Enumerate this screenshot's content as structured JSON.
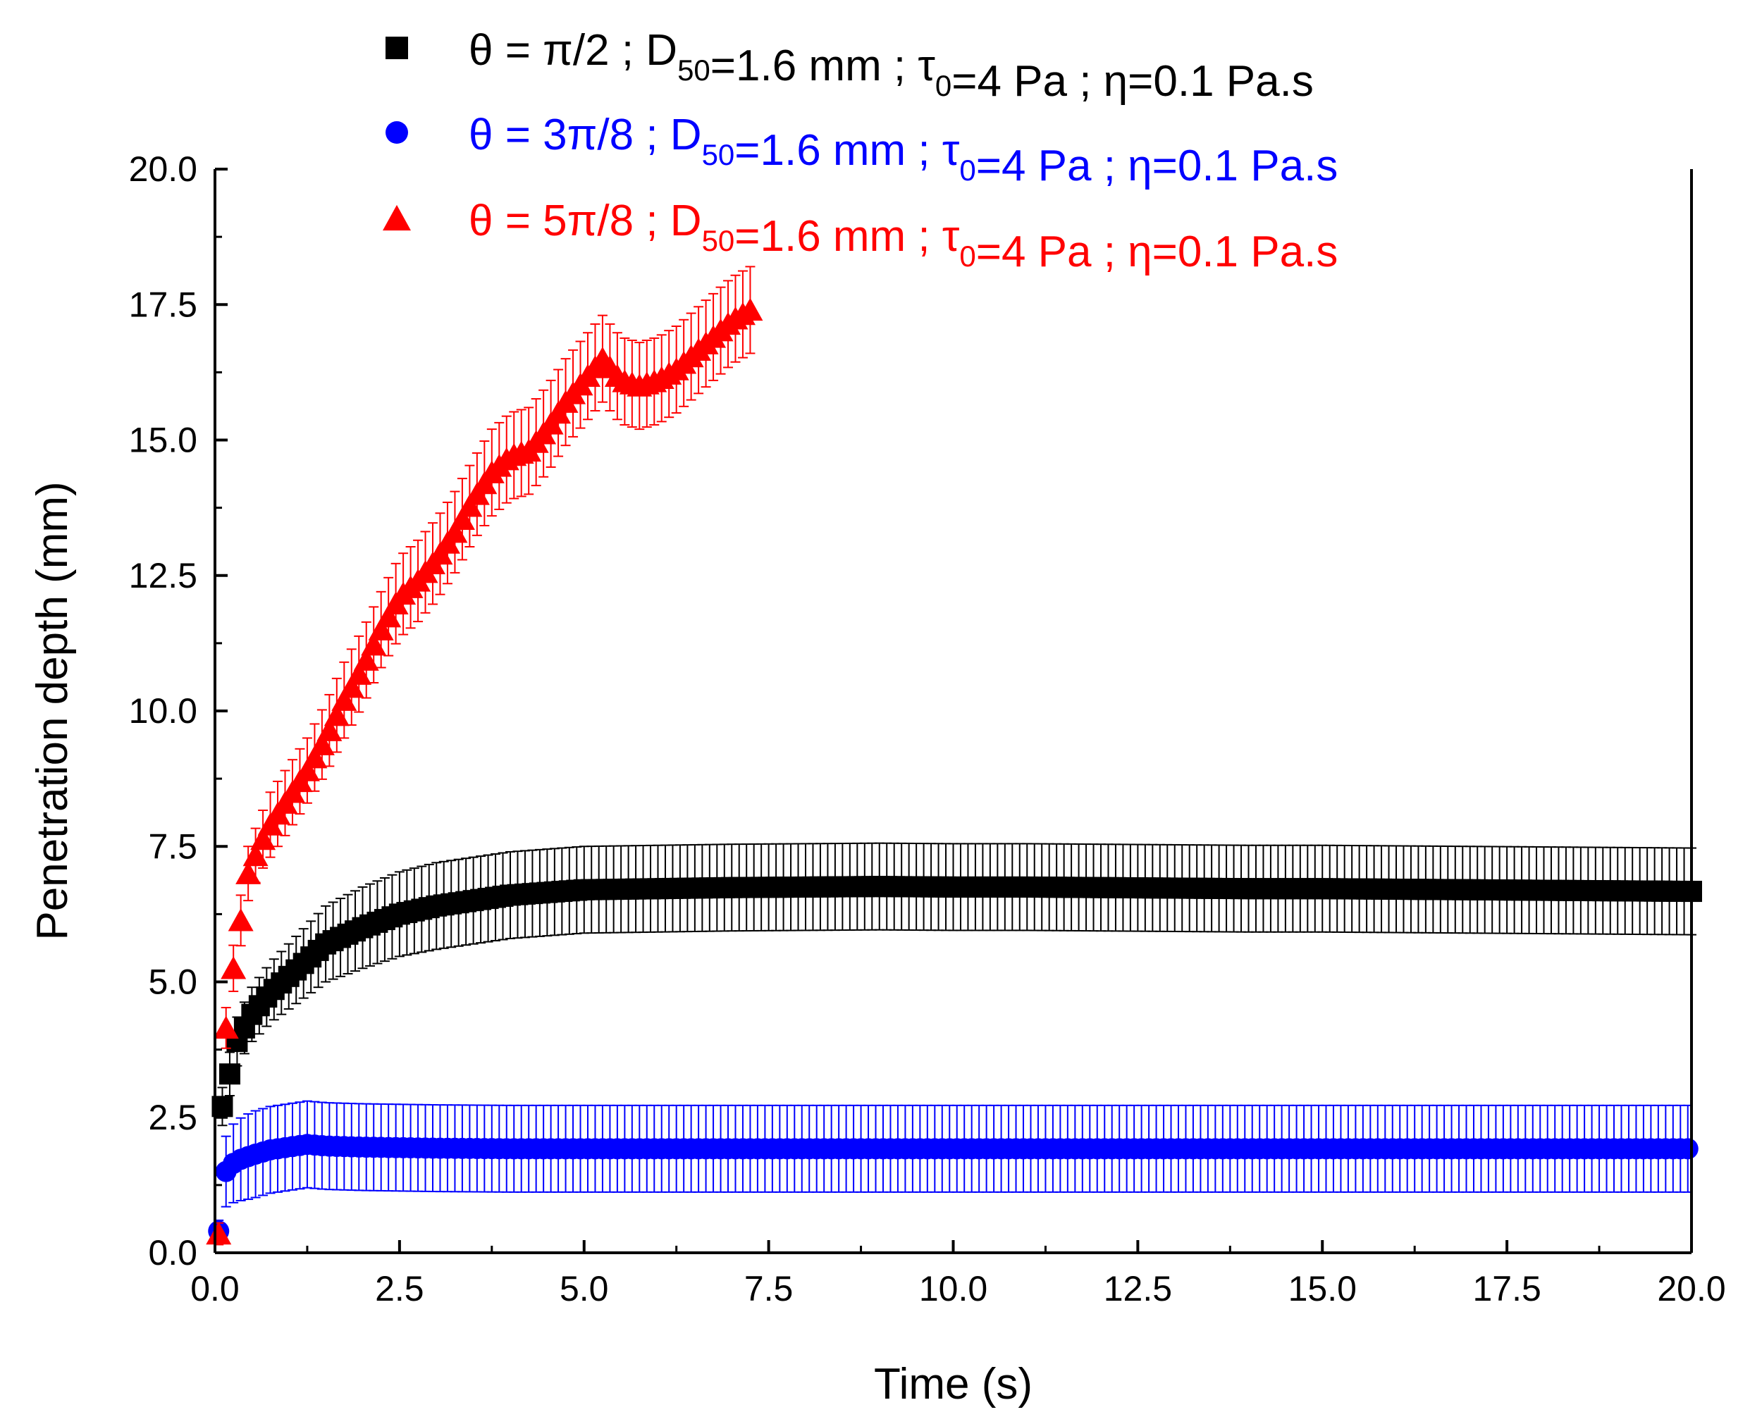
{
  "chart_data": {
    "type": "scatter",
    "xlabel": "Time (s)",
    "ylabel": "Penetration depth (mm)",
    "xlim": [
      0,
      20
    ],
    "ylim": [
      0,
      20
    ],
    "xticks": [
      "0.0",
      "2.5",
      "5.0",
      "7.5",
      "10.0",
      "12.5",
      "15.0",
      "17.5",
      "20.0"
    ],
    "yticks": [
      "0.0",
      "2.5",
      "5.0",
      "7.5",
      "10.0",
      "12.5",
      "15.0",
      "17.5",
      "20.0"
    ],
    "grid": false,
    "legend_position": "top",
    "error_bars": true,
    "series": [
      {
        "name": "θ = π/2   ; D50=1.6 mm ; τ0=4 Pa ; η=0.1 Pa.s",
        "legend": {
          "theta": "θ = π/2   ; D",
          "d_sub": "50",
          "d_val": "=1.6 mm ; τ",
          "tau_sub": "0",
          "rest": "=4 Pa ; η=0.1 Pa.s"
        },
        "color": "#000000",
        "marker": "square",
        "x": [
          0.1,
          0.2,
          0.3,
          0.5,
          0.75,
          1.0,
          1.25,
          1.5,
          2.0,
          2.5,
          3.0,
          3.5,
          4.0,
          5.0,
          6.0,
          7.0,
          8.0,
          9.0,
          10.0,
          11.0,
          12.0,
          13.0,
          14.0,
          15.0,
          16.0,
          17.0,
          18.0,
          19.0,
          20.0
        ],
        "y": [
          2.7,
          3.3,
          3.9,
          4.4,
          4.8,
          5.1,
          5.4,
          5.7,
          6.0,
          6.25,
          6.4,
          6.5,
          6.6,
          6.7,
          6.72,
          6.74,
          6.75,
          6.76,
          6.75,
          6.75,
          6.74,
          6.73,
          6.72,
          6.72,
          6.71,
          6.7,
          6.69,
          6.68,
          6.67
        ],
        "error": [
          0.35,
          0.4,
          0.45,
          0.5,
          0.55,
          0.6,
          0.65,
          0.7,
          0.75,
          0.78,
          0.8,
          0.8,
          0.8,
          0.8,
          0.8,
          0.8,
          0.8,
          0.8,
          0.8,
          0.8,
          0.8,
          0.8,
          0.8,
          0.8,
          0.8,
          0.8,
          0.8,
          0.8,
          0.8
        ]
      },
      {
        "name": "θ = 3π/8 ; D50=1.6 mm ; τ0=4 Pa ; η=0.1 Pa.s",
        "legend": {
          "theta": "θ = 3π/8 ; D",
          "d_sub": "50",
          "d_val": "=1.6 mm ; τ",
          "tau_sub": "0",
          "rest": "=4 Pa ; η=0.1 Pa.s"
        },
        "color": "#0000ff",
        "marker": "circle",
        "x": [
          0.05,
          0.1,
          0.2,
          0.3,
          0.5,
          0.75,
          1.0,
          1.25,
          1.5,
          2.0,
          3.0,
          4.0,
          5.0,
          6.0,
          7.0,
          8.0,
          9.0,
          10.0,
          11.0,
          12.0,
          13.0,
          14.0,
          15.0,
          16.0,
          17.0,
          18.0,
          19.0,
          20.0
        ],
        "y": [
          0.4,
          1.4,
          1.6,
          1.7,
          1.8,
          1.9,
          1.95,
          2.0,
          1.97,
          1.95,
          1.93,
          1.92,
          1.92,
          1.92,
          1.92,
          1.92,
          1.92,
          1.92,
          1.92,
          1.92,
          1.92,
          1.92,
          1.92,
          1.92,
          1.92,
          1.92,
          1.92,
          1.92
        ],
        "error": [
          0.2,
          0.6,
          0.7,
          0.75,
          0.8,
          0.8,
          0.8,
          0.8,
          0.8,
          0.8,
          0.8,
          0.8,
          0.8,
          0.8,
          0.8,
          0.8,
          0.8,
          0.8,
          0.8,
          0.8,
          0.8,
          0.8,
          0.8,
          0.8,
          0.8,
          0.8,
          0.8,
          0.8
        ]
      },
      {
        "name": "θ = 5π/8 ; D50=1.6 mm ; τ0=4 Pa ; η=0.1 Pa.s",
        "legend": {
          "theta": "θ = 5π/8 ; D",
          "d_sub": "50",
          "d_val": "=1.6 mm ; τ",
          "tau_sub": "0",
          "rest": "=4 Pa ; η=0.1 Pa.s"
        },
        "color": "#ff0000",
        "marker": "triangle",
        "x": [
          0.05,
          0.1,
          0.2,
          0.3,
          0.45,
          0.6,
          0.75,
          1.0,
          1.25,
          1.5,
          1.75,
          2.0,
          2.25,
          2.5,
          2.75,
          3.0,
          3.25,
          3.5,
          3.75,
          4.0,
          4.25,
          4.5,
          4.75,
          5.0,
          5.25,
          5.5,
          5.75,
          6.0,
          6.25,
          6.5,
          6.75,
          7.0,
          7.25
        ],
        "y": [
          0.35,
          3.5,
          4.8,
          5.7,
          7.0,
          7.5,
          7.9,
          8.4,
          8.9,
          9.5,
          10.2,
          10.8,
          11.5,
          12.1,
          12.4,
          12.8,
          13.3,
          13.9,
          14.4,
          14.7,
          14.8,
          15.2,
          15.7,
          16.1,
          16.5,
          16.1,
          16.0,
          16.1,
          16.3,
          16.6,
          16.9,
          17.2,
          17.4
        ],
        "error": [
          0.2,
          0.35,
          0.4,
          0.45,
          0.5,
          0.5,
          0.6,
          0.6,
          0.6,
          0.65,
          0.7,
          0.7,
          0.7,
          0.75,
          0.75,
          0.75,
          0.75,
          0.75,
          0.8,
          0.8,
          0.8,
          0.8,
          0.8,
          0.8,
          0.8,
          0.8,
          0.8,
          0.8,
          0.8,
          0.8,
          0.8,
          0.8,
          0.8
        ]
      }
    ]
  }
}
